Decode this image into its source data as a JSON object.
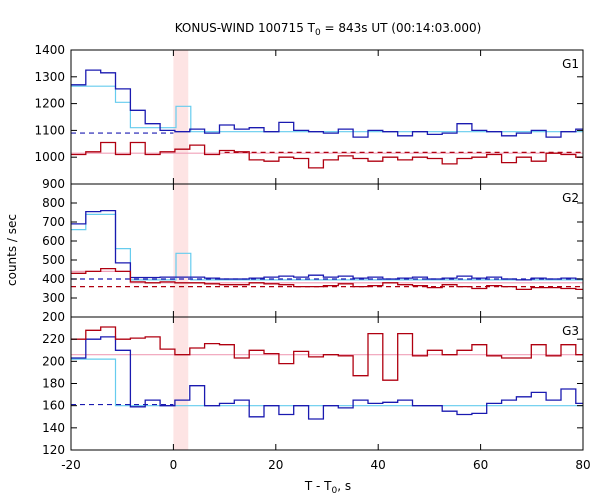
{
  "chart_data": {
    "type": "line",
    "title": "KONUS-WIND 100715 T",
    "title_sub": "0",
    "title_rest": " = 843s UT (00:14:03.000)",
    "xlabel": "T - T",
    "xlabel_sub": "0",
    "xlabel_rest": ", s",
    "ylabel": "counts / sec",
    "xlim": [
      -20,
      80
    ],
    "xticks": [
      -20,
      0,
      20,
      40,
      60,
      80
    ],
    "highlight_band": {
      "x0": 0,
      "x1": 2.9,
      "color": "#fde4e4"
    },
    "colors": {
      "blue": "#1a1ab0",
      "cyan": "#66ccee",
      "red": "#b00010",
      "pink": "#f0a0b8"
    },
    "panels": [
      {
        "name": "G1",
        "ylim": [
          900,
          1400
        ],
        "yticks": [
          900,
          1000,
          1100,
          1200,
          1300,
          1400
        ],
        "step_series": [
          {
            "name": "",
            "color": "#1a1ab0",
            "x0": -20,
            "dx": 2.9,
            "values": [
              1270,
              1325,
              1315,
              1255,
              1175,
              1125,
              1100,
              1095,
              1105,
              1090,
              1120,
              1105,
              1110,
              1095,
              1130,
              1100,
              1095,
              1090,
              1105,
              1075,
              1100,
              1095,
              1080,
              1095,
              1085,
              1090,
              1125,
              1100,
              1095,
              1080,
              1090,
              1100,
              1075,
              1095,
              1105
            ]
          },
          {
            "name": "",
            "color": "#b00010",
            "x0": -20,
            "dx": 2.9,
            "values": [
              1010,
              1020,
              1055,
              1010,
              1055,
              1010,
              1020,
              1030,
              1045,
              1010,
              1025,
              1020,
              990,
              985,
              1000,
              995,
              960,
              990,
              1005,
              995,
              985,
              1000,
              990,
              1000,
              995,
              975,
              995,
              1000,
              1010,
              980,
              1000,
              985,
              1015,
              1010,
              1000
            ]
          }
        ],
        "background_series": [
          {
            "name": "",
            "color": "#66ccee",
            "steps": [
              [
                -20,
                1265
              ],
              [
                -11.3,
                1205
              ],
              [
                -8.4,
                1110
              ],
              [
                0,
                1110
              ],
              [
                0.5,
                1190
              ],
              [
                3.4,
                1095
              ],
              [
                80,
                1095
              ]
            ]
          },
          {
            "name": "",
            "color": "#f0a0b8",
            "steps": [
              [
                -20,
                1015
              ],
              [
                80,
                1015
              ]
            ]
          }
        ],
        "fit_lines": [
          {
            "name": "",
            "color": "#1a1ab0",
            "y": 1090,
            "x_from": -20,
            "x_to": 0
          },
          {
            "name": "",
            "color": "#b00010",
            "y": 1018,
            "x_from": 10,
            "x_to": 80
          }
        ]
      },
      {
        "name": "G2",
        "ylim": [
          200,
          900
        ],
        "yticks": [
          200,
          300,
          400,
          500,
          600,
          700,
          800
        ],
        "step_series": [
          {
            "name": "",
            "color": "#1a1ab0",
            "x0": -20,
            "dx": 2.9,
            "values": [
              690,
              755,
              760,
              485,
              408,
              408,
              410,
              410,
              410,
              405,
              400,
              400,
              405,
              410,
              415,
              410,
              420,
              410,
              415,
              405,
              410,
              400,
              405,
              410,
              400,
              405,
              415,
              405,
              410,
              400,
              395,
              405,
              400,
              405,
              400
            ]
          },
          {
            "name": "",
            "color": "#b00010",
            "x0": -20,
            "dx": 2.9,
            "values": [
              430,
              440,
              455,
              440,
              385,
              380,
              385,
              380,
              380,
              375,
              370,
              370,
              380,
              375,
              370,
              360,
              360,
              365,
              375,
              360,
              365,
              380,
              370,
              365,
              355,
              370,
              360,
              350,
              365,
              360,
              345,
              355,
              355,
              350,
              345
            ]
          }
        ],
        "background_series": [
          {
            "name": "",
            "color": "#66ccee",
            "steps": [
              [
                -20,
                660
              ],
              [
                -17.1,
                740
              ],
              [
                -11.3,
                560
              ],
              [
                -8.4,
                395
              ],
              [
                0,
                395
              ],
              [
                0.5,
                535
              ],
              [
                3.4,
                395
              ],
              [
                80,
                395
              ]
            ]
          },
          {
            "name": "",
            "color": "#f0a0b8",
            "steps": [
              [
                -20,
                440
              ],
              [
                -8.4,
                380
              ],
              [
                80,
                365
              ]
            ]
          }
        ],
        "fit_lines": [
          {
            "name": "",
            "color": "#1a1ab0",
            "y": 400,
            "x_from": -20,
            "x_to": 80
          },
          {
            "name": "",
            "color": "#b00010",
            "y": 360,
            "x_from": -20,
            "x_to": 80
          }
        ]
      },
      {
        "name": "G3",
        "ylim": [
          120,
          240
        ],
        "yticks": [
          120,
          140,
          160,
          180,
          200,
          220
        ],
        "step_series": [
          {
            "name": "",
            "color": "#1a1ab0",
            "x0": -20,
            "dx": 2.9,
            "values": [
              203,
              220,
              222,
              210,
              159,
              165,
              160,
              165,
              178,
              160,
              162,
              165,
              150,
              160,
              152,
              160,
              148,
              160,
              158,
              165,
              162,
              163,
              165,
              160,
              160,
              155,
              152,
              153,
              162,
              165,
              168,
              172,
              165,
              175,
              162
            ]
          },
          {
            "name": "",
            "color": "#b00010",
            "x0": -20,
            "dx": 2.9,
            "values": [
              220,
              228,
              231,
              220,
              221,
              222,
              211,
              206,
              212,
              216,
              215,
              203,
              210,
              207,
              198,
              209,
              204,
              206,
              205,
              187,
              225,
              183,
              225,
              205,
              210,
              206,
              210,
              215,
              205,
              203,
              203,
              215,
              205,
              215,
              206
            ]
          }
        ],
        "background_series": [
          {
            "name": "",
            "color": "#66ccee",
            "steps": [
              [
                -20,
                202
              ],
              [
                -11.3,
                160
              ],
              [
                80,
                160
              ]
            ]
          },
          {
            "name": "",
            "color": "#f0a0b8",
            "steps": [
              [
                -20,
                206
              ],
              [
                80,
                206
              ]
            ]
          }
        ],
        "fit_lines": [
          {
            "name": "",
            "color": "#1a1ab0",
            "y": 161,
            "x_from": -20,
            "x_to": 0
          }
        ]
      }
    ]
  }
}
